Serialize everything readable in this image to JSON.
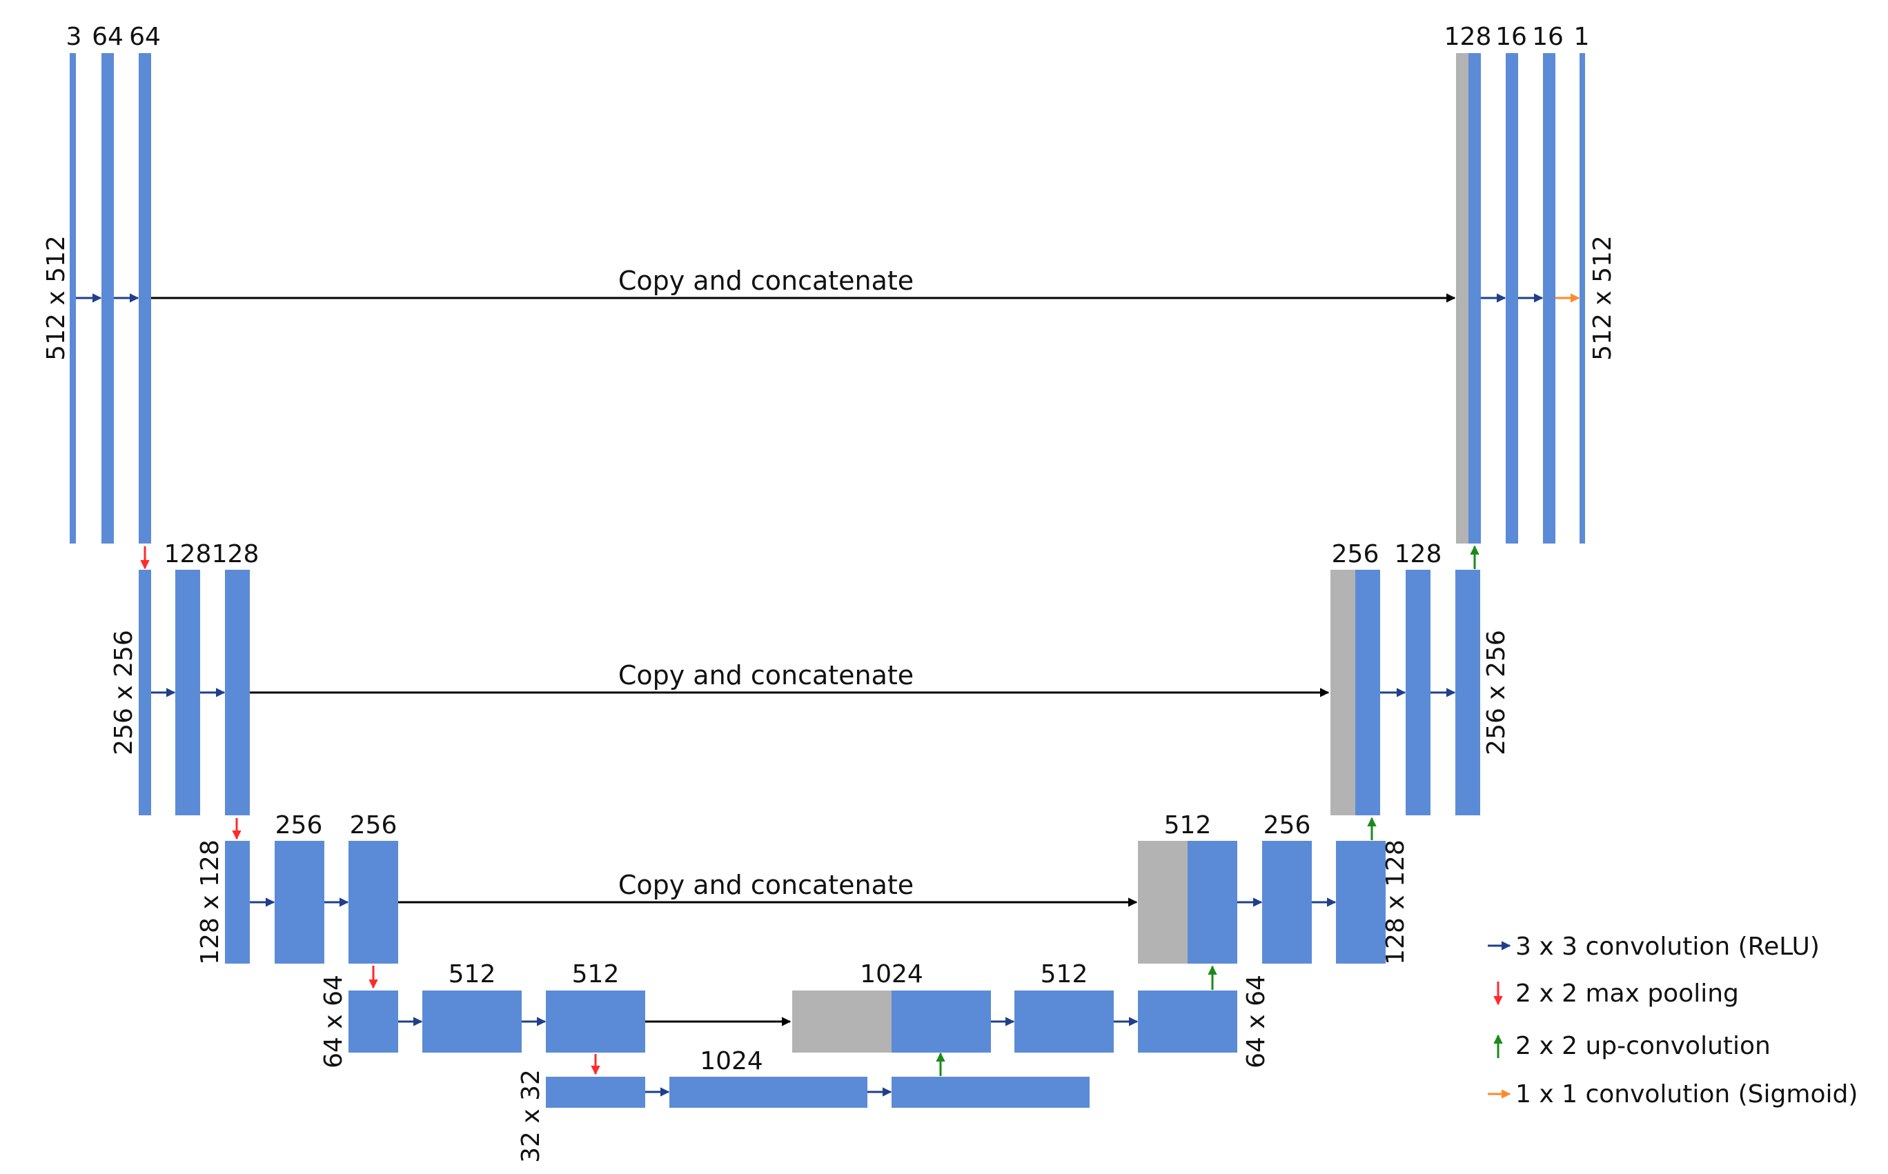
{
  "colors": {
    "block": "#5b8bd6",
    "concat": "#b3b3b3",
    "conv_arrow": "#1f3f8a",
    "pool_arrow": "#ff2a2a",
    "upconv_arrow": "#1a8a1a",
    "sigmoid_arrow": "#ff8a2a",
    "copy_arrow": "#000000"
  },
  "levels": {
    "l1": {
      "res": "512 x 512",
      "enc_channels": [
        "3",
        "64",
        "64"
      ],
      "dec_channels": [
        "128",
        "16",
        "16",
        "1"
      ]
    },
    "l2": {
      "res": "256 x 256",
      "enc_channels": [
        "128",
        "128"
      ],
      "dec_channels": [
        "256",
        "128"
      ]
    },
    "l3": {
      "res": "128 x 128",
      "enc_channels": [
        "256",
        "256"
      ],
      "dec_channels": [
        "512",
        "256"
      ]
    },
    "l4": {
      "res": "64 x 64",
      "enc_channels": [
        "512",
        "512"
      ],
      "dec_channels": [
        "1024",
        "512"
      ]
    },
    "l5": {
      "res": "32 x 32",
      "channels": [
        "1024"
      ]
    }
  },
  "copy_label": "Copy and concatenate",
  "legend": [
    {
      "icon": "conv-arrow-icon",
      "label": "3 x 3 convolution (ReLU)"
    },
    {
      "icon": "pool-arrow-icon",
      "label": "2 x 2 max pooling"
    },
    {
      "icon": "upconv-arrow-icon",
      "label": "2 x 2 up-convolution"
    },
    {
      "icon": "sigmoid-arrow-icon",
      "label": "1 x 1 convolution (Sigmoid)"
    }
  ]
}
